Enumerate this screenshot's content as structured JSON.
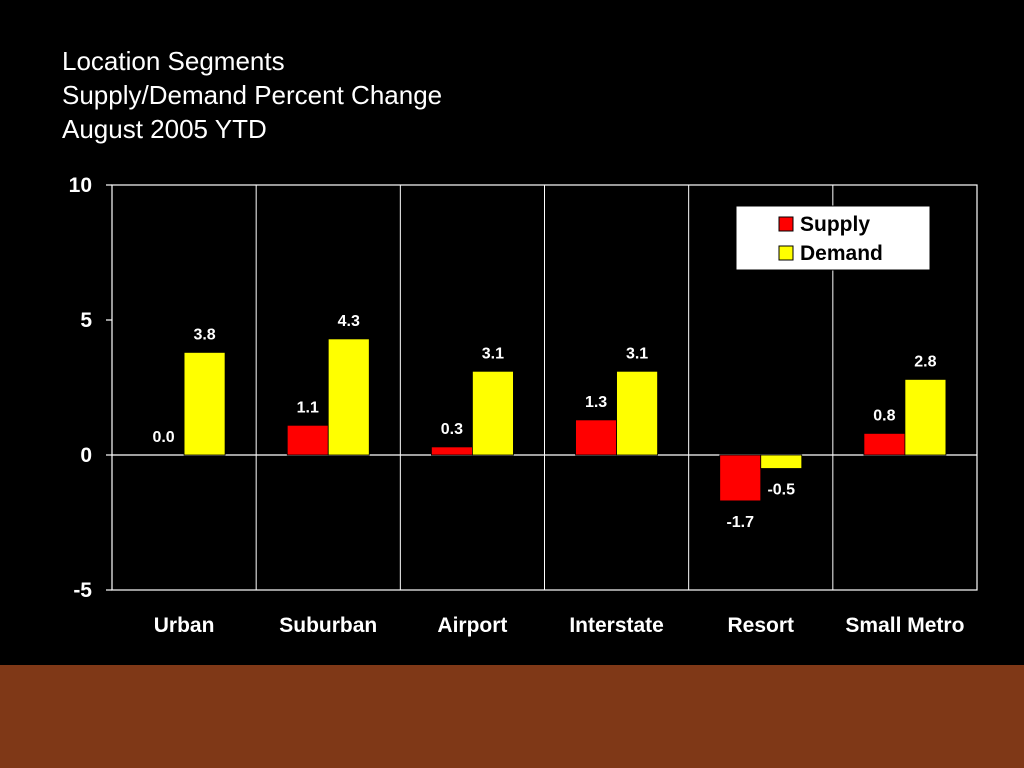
{
  "slide": {
    "title_lines": [
      "Location Segments",
      "Supply/Demand Percent Change",
      "August 2005 YTD"
    ],
    "footer_color": "#7F3817",
    "background_color": "#000000"
  },
  "chart_data": {
    "type": "bar",
    "title": "",
    "xlabel": "",
    "ylabel": "",
    "categories": [
      "Urban",
      "Suburban",
      "Airport",
      "Interstate",
      "Resort",
      "Small Metro"
    ],
    "series": [
      {
        "name": "Supply",
        "values": [
          0.0,
          1.1,
          0.3,
          1.3,
          -1.7,
          0.8
        ],
        "labels": [
          "0.0",
          "1.1",
          "0.3",
          "1.3",
          "-1.7",
          "0.8"
        ],
        "color": "#FF0000"
      },
      {
        "name": "Demand",
        "values": [
          3.8,
          4.3,
          3.1,
          3.1,
          -0.5,
          2.8
        ],
        "labels": [
          "3.8",
          "4.3",
          "3.1",
          "3.1",
          "-0.5",
          "2.8"
        ],
        "color": "#FFFF00"
      }
    ],
    "ylim": [
      -5,
      10
    ],
    "yticks": [
      -5,
      0,
      5,
      10
    ],
    "ytick_labels": [
      "-5",
      "0",
      "5",
      "10"
    ],
    "grid": {
      "vertical_category_separators": true,
      "horizontal": false
    },
    "legend": {
      "position": "top-right"
    },
    "colors": {
      "axis": "#FFFFFF",
      "plot_background": "#000000"
    }
  }
}
